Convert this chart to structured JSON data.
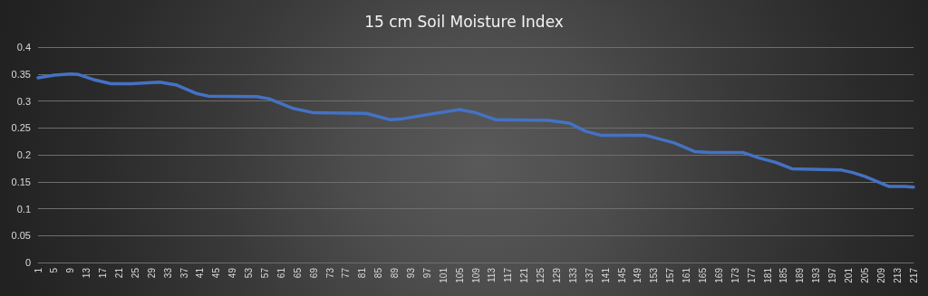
{
  "chart_data": {
    "type": "line",
    "title": "15 cm Soil Moisture Index",
    "x": [
      1,
      5,
      9,
      11,
      15,
      19,
      24,
      31,
      35,
      40,
      43,
      55,
      58,
      64,
      69,
      82,
      88,
      91,
      99,
      105,
      109,
      114,
      127,
      132,
      136,
      140,
      151,
      154,
      158,
      163,
      167,
      175,
      179,
      183,
      187,
      199,
      202,
      205,
      211,
      215,
      217
    ],
    "series": [
      {
        "color": "#4472c4",
        "values": [
          0.343,
          0.348,
          0.35,
          0.349,
          0.339,
          0.332,
          0.332,
          0.335,
          0.33,
          0.314,
          0.309,
          0.308,
          0.304,
          0.286,
          0.278,
          0.277,
          0.265,
          0.267,
          0.277,
          0.284,
          0.278,
          0.265,
          0.264,
          0.259,
          0.244,
          0.236,
          0.236,
          0.23,
          0.222,
          0.206,
          0.204,
          0.204,
          0.194,
          0.186,
          0.174,
          0.172,
          0.167,
          0.16,
          0.141,
          0.141,
          0.14
        ]
      }
    ],
    "xlim": [
      1,
      217
    ],
    "xticks": [
      1,
      5,
      9,
      13,
      17,
      21,
      25,
      29,
      33,
      37,
      41,
      45,
      49,
      53,
      57,
      61,
      65,
      69,
      73,
      77,
      81,
      85,
      89,
      93,
      97,
      101,
      105,
      109,
      113,
      117,
      121,
      125,
      129,
      133,
      137,
      141,
      145,
      149,
      153,
      157,
      161,
      165,
      169,
      173,
      177,
      181,
      185,
      189,
      193,
      197,
      201,
      205,
      209,
      213,
      217
    ],
    "ylim": [
      0,
      0.4
    ],
    "yticks": [
      0,
      0.05,
      0.1,
      0.15,
      0.2,
      0.25,
      0.3,
      0.35,
      0.4
    ],
    "grid": "y",
    "marker": "none",
    "line_style": "solid"
  }
}
